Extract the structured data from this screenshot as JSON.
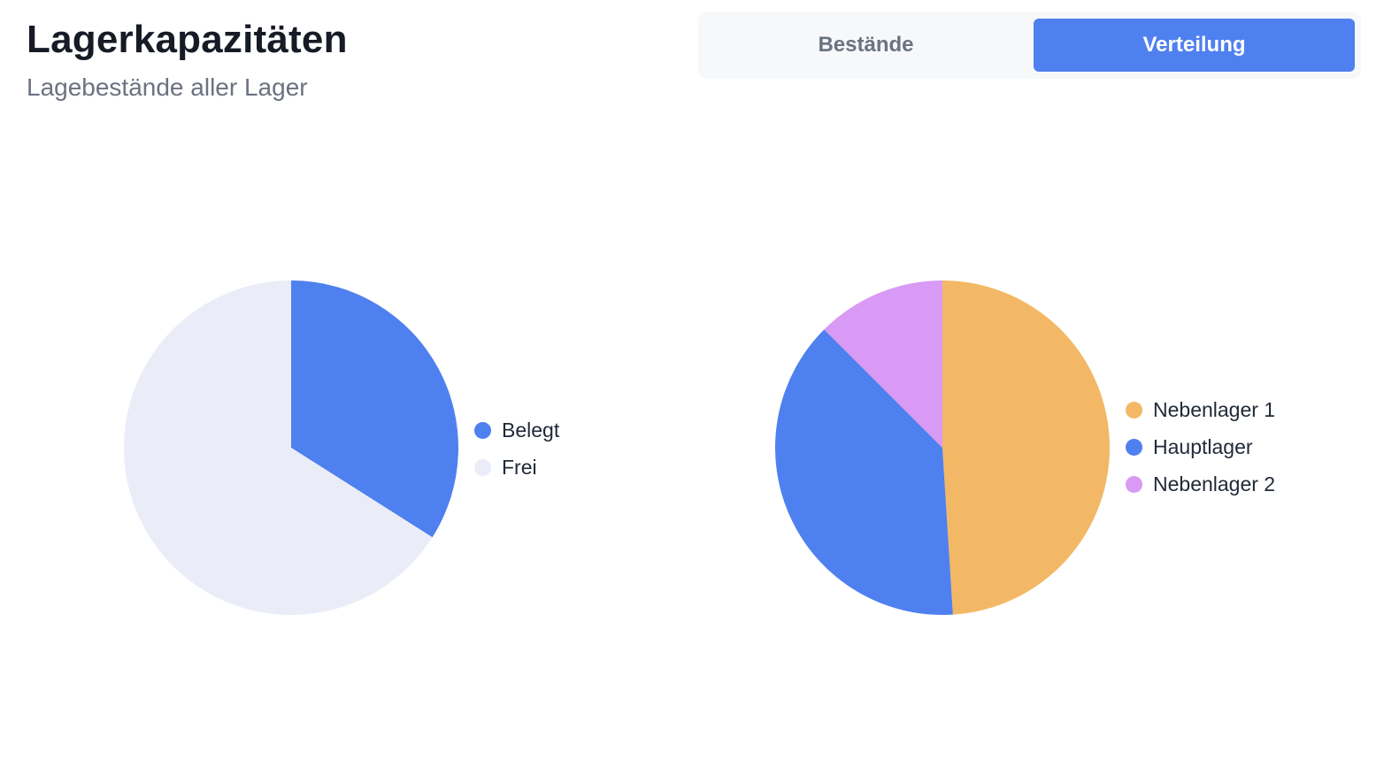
{
  "header": {
    "title": "Lagerkapazitäten",
    "subtitle": "Lagebestände aller Lager"
  },
  "tabs": [
    {
      "label": "Bestände",
      "active": false
    },
    {
      "label": "Verteilung",
      "active": true
    }
  ],
  "colors": {
    "accent": "#4f80ef",
    "free": "#eaedf8",
    "orange": "#f3b865",
    "purple": "#d89af5"
  },
  "chart_data": [
    {
      "type": "pie",
      "title": "",
      "legend": "right",
      "slices": [
        {
          "label": "Belegt",
          "value": 34,
          "color": "#4f80ef"
        },
        {
          "label": "Frei",
          "value": 66,
          "color": "#eaedf8"
        }
      ]
    },
    {
      "type": "pie",
      "title": "",
      "legend": "right",
      "slices": [
        {
          "label": "Nebenlager 1",
          "value": 49,
          "color": "#f3b865"
        },
        {
          "label": "Hauptlager",
          "value": 38.5,
          "color": "#4f80ef"
        },
        {
          "label": "Nebenlager 2",
          "value": 12.5,
          "color": "#d89af5"
        }
      ]
    }
  ]
}
